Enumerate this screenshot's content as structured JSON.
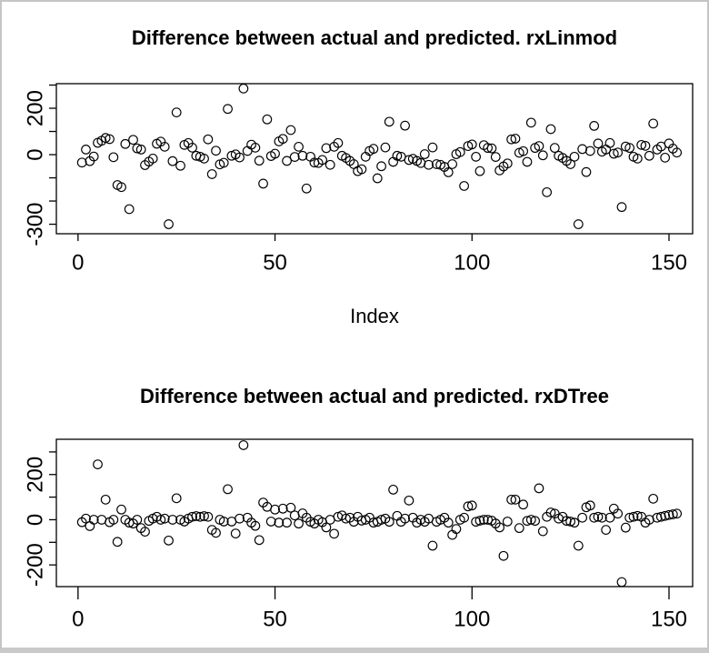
{
  "window": {
    "background": "#ffffff",
    "border_color": "#c5c5c5",
    "plot_line_color": "#000000",
    "point_color": "#000000"
  },
  "chart_data": [
    {
      "type": "scatter",
      "title": "Difference between actual and predicted. rxLinmod",
      "xlabel": "Index",
      "ylabel": "",
      "marker": "open-circle",
      "grid": false,
      "legend": "none",
      "xlim": [
        -5.5,
        156
      ],
      "ylim": [
        -341,
        306
      ],
      "x_ticks": [
        0,
        50,
        100,
        150
      ],
      "x_tick_labels": [
        "0",
        "50",
        "100",
        "150"
      ],
      "y_ticks": [
        -300,
        -200,
        -100,
        0,
        100,
        200,
        300
      ],
      "y_tick_labels": [
        "-300",
        "",
        "",
        "0",
        "",
        "200",
        ""
      ],
      "x_range": [
        1,
        152
      ],
      "x_description": "Index 1..152 (one point per observation)",
      "y": [
        -34,
        22,
        -28,
        -8,
        51,
        60,
        72,
        67,
        -11,
        -131,
        -140,
        46,
        -235,
        64,
        27,
        22,
        -45,
        -30,
        -17,
        47,
        56,
        34,
        -300,
        -28,
        182,
        -48,
        42,
        50,
        30,
        -5,
        -9,
        -17,
        66,
        -84,
        17,
        -42,
        -35,
        197,
        -5,
        1,
        -12,
        285,
        16,
        43,
        30,
        -26,
        -125,
        152,
        -6,
        4,
        57,
        68,
        -27,
        106,
        -10,
        34,
        -5,
        -146,
        -9,
        -34,
        -36,
        -23,
        28,
        -44,
        34,
        50,
        -5,
        -14,
        -27,
        -41,
        -71,
        -63,
        -9,
        16,
        25,
        -102,
        -50,
        31,
        142,
        -31,
        -5,
        -9,
        125,
        -23,
        -18,
        -27,
        -36,
        2,
        -44,
        31,
        -41,
        -44,
        -53,
        -76,
        -41,
        2,
        11,
        -135,
        37,
        44,
        -9,
        -71,
        41,
        29,
        27,
        -10,
        -68,
        -51,
        -38,
        66,
        69,
        8,
        15,
        -31,
        138,
        29,
        37,
        -3,
        -162,
        110,
        29,
        -5,
        -14,
        -27,
        -41,
        -9,
        -300,
        24,
        -75,
        16,
        124,
        48,
        13,
        22,
        50,
        4,
        9,
        -226,
        35,
        29,
        -9,
        -17,
        42,
        38,
        -5,
        134,
        22,
        35,
        -13,
        48,
        26,
        9
      ]
    },
    {
      "type": "scatter",
      "title": "Difference between actual and predicted. rxDTree",
      "xlabel": "",
      "ylabel": "",
      "marker": "open-circle",
      "grid": false,
      "legend": "none",
      "xlim": [
        -5.5,
        156
      ],
      "ylim": [
        -296,
        356
      ],
      "x_ticks": [
        0,
        50,
        100,
        150
      ],
      "x_tick_labels": [
        "0",
        "50",
        "100",
        "150"
      ],
      "y_ticks": [
        -200,
        -100,
        0,
        100,
        200,
        300
      ],
      "y_tick_labels": [
        "-200",
        "",
        "0",
        "",
        "200",
        ""
      ],
      "x_range": [
        1,
        152
      ],
      "x_description": "Index 1..152 (one point per observation)",
      "y": [
        -11,
        5,
        -28,
        0,
        245,
        0,
        89,
        -11,
        0,
        -98,
        45,
        0,
        -13,
        -17,
        0,
        -37,
        -53,
        -5,
        5,
        13,
        0,
        5,
        -92,
        0,
        95,
        0,
        -8,
        5,
        13,
        16,
        13,
        16,
        13,
        -45,
        -58,
        0,
        -8,
        135,
        -8,
        -61,
        5,
        330,
        9,
        -13,
        -27,
        -90,
        76,
        57,
        -8,
        45,
        -13,
        49,
        -13,
        53,
        19,
        -17,
        28,
        9,
        -9,
        -17,
        0,
        -11,
        -34,
        0,
        -62,
        13,
        19,
        5,
        9,
        -9,
        13,
        -4,
        0,
        9,
        -13,
        -9,
        0,
        5,
        -9,
        133,
        17,
        -9,
        5,
        85,
        9,
        -13,
        0,
        -9,
        5,
        -115,
        -9,
        0,
        9,
        -13,
        -67,
        -41,
        0,
        9,
        59,
        63,
        -9,
        -4,
        0,
        0,
        -4,
        -17,
        -34,
        -160,
        -8,
        89,
        89,
        -37,
        67,
        -5,
        0,
        -5,
        139,
        -51,
        13,
        32,
        27,
        5,
        13,
        -5,
        -8,
        -13,
        -115,
        9,
        55,
        63,
        9,
        13,
        9,
        -45,
        9,
        49,
        27,
        -276,
        -35,
        9,
        13,
        17,
        13,
        -13,
        0,
        93,
        9,
        13,
        17,
        21,
        24,
        27
      ]
    }
  ]
}
